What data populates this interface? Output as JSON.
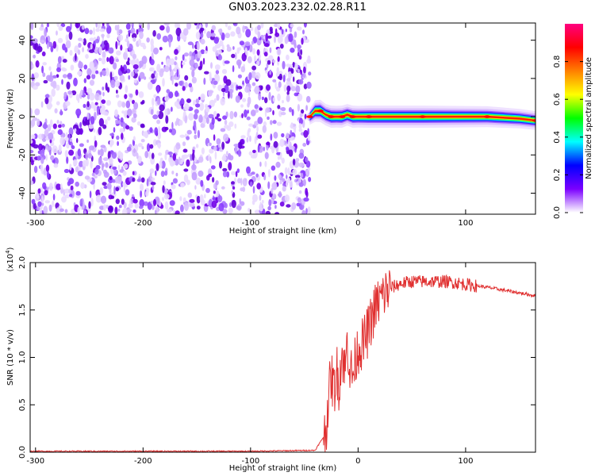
{
  "title": "GN03.2023.232.02.28.R11",
  "chart_data": [
    {
      "type": "heatmap",
      "xlabel": "Height of straight line (km)",
      "ylabel": "Frequency (Hz)",
      "xlim": [
        -305,
        165
      ],
      "ylim": [
        -51,
        49
      ],
      "xticks": [
        -300,
        -200,
        -100,
        0,
        100
      ],
      "yticks": [
        -40,
        -20,
        0,
        20,
        40
      ],
      "grid": false,
      "colorbar": {
        "label": "Normalized spectral amplitude",
        "range": [
          0,
          1
        ],
        "ticks": [
          0.0,
          0.2,
          0.4,
          0.6,
          0.8
        ],
        "colors": [
          "#ffffff",
          "#7b00ff",
          "#0000ff",
          "#00ffff",
          "#00ff00",
          "#ffff00",
          "#ff8000",
          "#ff0000",
          "#ff0080"
        ]
      },
      "noise_region_x": [
        -305,
        -45
      ],
      "signal_track": {
        "x": [
          -45,
          -40,
          -35,
          -30,
          -25,
          -20,
          -15,
          -10,
          -5,
          0,
          10,
          30,
          60,
          90,
          120,
          150,
          165
        ],
        "freq_hz": [
          0,
          3,
          3,
          1,
          0,
          0,
          0,
          1,
          0,
          0,
          0,
          0,
          0,
          0,
          0,
          -1,
          -2
        ],
        "peak_amplitude": [
          0.5,
          0.9,
          0.95,
          0.9,
          0.95,
          0.9,
          0.95,
          0.9,
          0.95,
          0.9,
          0.95,
          0.95,
          0.95,
          0.9,
          0.85,
          0.75,
          0.7
        ]
      }
    },
    {
      "type": "line",
      "xlabel": "Height of straight line (km)",
      "ylabel": "SNR (10 * v/v)",
      "scale_label": "(x10",
      "scale_exp": "4",
      "xlim": [
        -305,
        165
      ],
      "ylim": [
        0,
        2.0
      ],
      "xticks": [
        -300,
        -200,
        -100,
        0,
        100
      ],
      "yticks": [
        0.0,
        0.5,
        1.0,
        1.5,
        2.0
      ],
      "ytick_labels": [
        "0.0",
        "0.5",
        "1.0",
        "1.5",
        "2.0"
      ],
      "grid": false,
      "color": "#e03030",
      "series": [
        {
          "x": [
            -305,
            -200,
            -100,
            -40,
            -30,
            -28,
            -25,
            -22,
            -20,
            -18,
            -15,
            -12,
            -10,
            -8,
            -5,
            -2,
            0,
            5,
            10,
            15,
            20,
            25,
            30,
            40,
            50,
            60,
            70,
            80,
            90,
            100,
            120,
            140,
            165
          ],
          "values": [
            0.01,
            0.01,
            0.01,
            0.02,
            0.2,
            0.55,
            0.8,
            0.65,
            0.9,
            0.7,
            1.05,
            0.85,
            1.2,
            0.9,
            0.8,
            1.0,
            1.1,
            1.15,
            1.3,
            1.5,
            1.6,
            1.68,
            1.73,
            1.78,
            1.8,
            1.8,
            1.8,
            1.8,
            1.79,
            1.77,
            1.74,
            1.7,
            1.65
          ]
        }
      ]
    }
  ]
}
